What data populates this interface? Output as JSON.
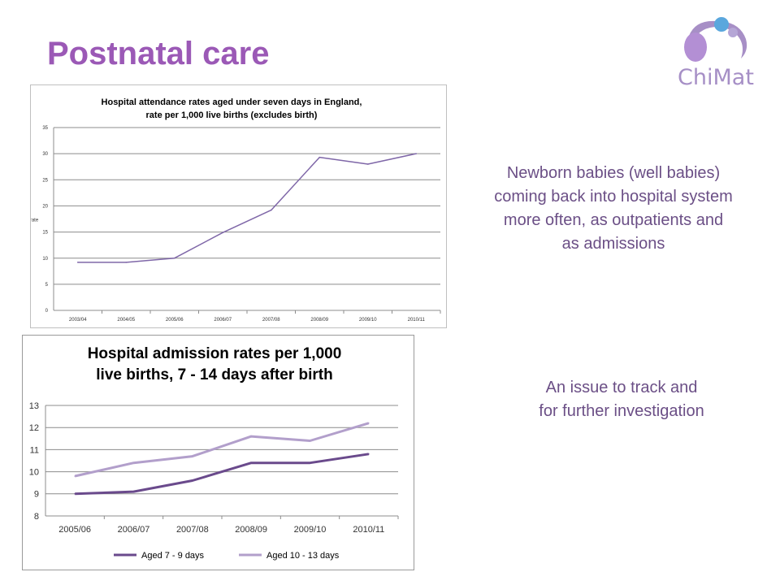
{
  "slide": {
    "title": "Postnatal care",
    "logo_text": "ChiMat",
    "note1": [
      "Newborn babies (well babies)",
      "coming back into hospital system",
      "more often, as outpatients and",
      "as admissions"
    ],
    "note2": [
      "An issue to track and",
      "for further investigation"
    ]
  },
  "colors": {
    "title": "#9b59b6",
    "series_dark": "#6a4a8c",
    "series_light": "#b29fcb",
    "series_single": "#7f67a8",
    "grid": "#8c8c8c"
  },
  "chart_data": [
    {
      "type": "line",
      "title": [
        "Hospital attendance rates aged under seven days in England,",
        "rate per 1,000 live births (excludes birth)"
      ],
      "ylabel": "rate",
      "xlabel": "",
      "categories": [
        "2003/04",
        "2004/05",
        "2005/06",
        "2006/07",
        "2007/08",
        "2008/09",
        "2009/10",
        "2010/11"
      ],
      "series": [
        {
          "values": [
            9.2,
            9.2,
            10.0,
            14.9,
            19.2,
            29.3,
            28.0,
            30.0
          ]
        }
      ],
      "ylim": [
        0,
        35
      ],
      "yticks": [
        0,
        5,
        10,
        15,
        20,
        25,
        30,
        35
      ],
      "grid": true,
      "legend": "none"
    },
    {
      "type": "line",
      "title": [
        "Hospital admission rates per 1,000",
        "live births, 7 - 14 days after birth"
      ],
      "xlabel": "",
      "ylabel": "",
      "categories": [
        "2005/06",
        "2006/07",
        "2007/08",
        "2008/09",
        "2009/10",
        "2010/11"
      ],
      "series": [
        {
          "name": "Aged 7 - 9 days",
          "values": [
            9.0,
            9.1,
            9.6,
            10.4,
            10.4,
            10.8
          ]
        },
        {
          "name": "Aged 10 - 13 days",
          "values": [
            9.8,
            10.4,
            10.7,
            11.6,
            11.4,
            12.2
          ]
        }
      ],
      "ylim": [
        8,
        13
      ],
      "yticks": [
        8,
        9,
        10,
        11,
        12,
        13
      ],
      "grid": true,
      "legend": "bottom"
    }
  ]
}
